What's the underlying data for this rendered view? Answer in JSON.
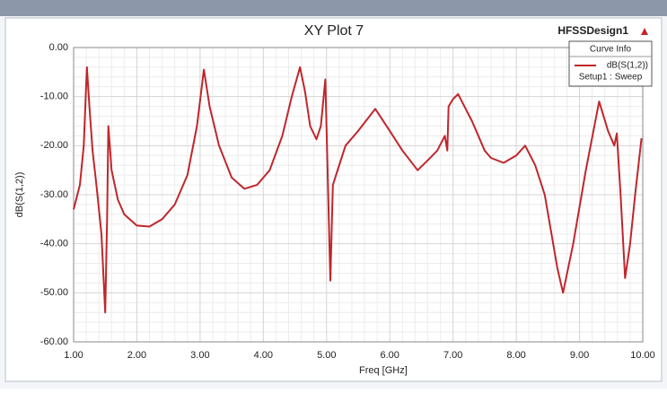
{
  "chart_data": {
    "type": "line",
    "title": "XY Plot 7",
    "design_label": "HFSSDesign1",
    "legend_title": "Curve Info",
    "legend_subtitle": "Setup1 : Sweep",
    "xlabel": "Freq [GHz]",
    "ylabel": "dB(S(1,2))",
    "xlim": [
      1,
      10
    ],
    "ylim": [
      -60,
      0
    ],
    "xticks": [
      {
        "value": 1,
        "label": "1.00"
      },
      {
        "value": 2,
        "label": "2.00"
      },
      {
        "value": 3,
        "label": "3.00"
      },
      {
        "value": 4,
        "label": "4.00"
      },
      {
        "value": 5,
        "label": "5.00"
      },
      {
        "value": 6,
        "label": "6.00"
      },
      {
        "value": 7,
        "label": "7.00"
      },
      {
        "value": 8,
        "label": "8.00"
      },
      {
        "value": 9,
        "label": "9.00"
      },
      {
        "value": 10,
        "label": "10.00"
      }
    ],
    "yticks": [
      {
        "value": 0,
        "label": "0.00"
      },
      {
        "value": -10,
        "label": "-10.00"
      },
      {
        "value": -20,
        "label": "-20.00"
      },
      {
        "value": -30,
        "label": "-30.00"
      },
      {
        "value": -40,
        "label": "-40.00"
      },
      {
        "value": -50,
        "label": "-50.00"
      },
      {
        "value": -60,
        "label": "-60.00"
      }
    ],
    "grid": true,
    "legend": "upper right",
    "x": [
      1.0,
      1.1,
      1.16,
      1.21,
      1.25,
      1.3,
      1.36,
      1.44,
      1.5,
      1.53,
      1.55,
      1.6,
      1.7,
      1.8,
      2.0,
      2.2,
      2.4,
      2.6,
      2.8,
      2.95,
      3.06,
      3.15,
      3.3,
      3.5,
      3.7,
      3.9,
      4.1,
      4.3,
      4.45,
      4.58,
      4.66,
      4.74,
      4.84,
      4.91,
      4.98,
      5.06,
      5.1,
      5.3,
      5.5,
      5.77,
      6.0,
      6.2,
      6.44,
      6.6,
      6.75,
      6.87,
      6.91,
      6.93,
      7.0,
      7.08,
      7.3,
      7.5,
      7.6,
      7.8,
      8.0,
      8.14,
      8.3,
      8.45,
      8.65,
      8.74,
      8.9,
      9.1,
      9.31,
      9.45,
      9.55,
      9.59,
      9.65,
      9.72,
      9.8,
      9.88,
      9.98
    ],
    "series": [
      {
        "name": "dB(S(1,2))",
        "color": "#c0262b",
        "values": [
          -33,
          -28,
          -20,
          -4,
          -12,
          -21,
          -28,
          -38,
          -54,
          -35,
          -16,
          -25,
          -31,
          -34,
          -36.3,
          -36.5,
          -35,
          -32,
          -26,
          -16,
          -4.5,
          -12,
          -20,
          -26.5,
          -28.8,
          -28,
          -25,
          -18,
          -10,
          -4,
          -9,
          -16,
          -18.7,
          -16,
          -6.5,
          -47.5,
          -28,
          -20,
          -17,
          -12.5,
          -17,
          -21,
          -25,
          -23,
          -21,
          -18,
          -21,
          -12,
          -10.5,
          -9.5,
          -15,
          -21,
          -22.5,
          -23.5,
          -22,
          -20,
          -24,
          -30,
          -45,
          -50,
          -40,
          -25,
          -11,
          -17,
          -20,
          -17.5,
          -30,
          -47,
          -40,
          -30,
          -18.5
        ]
      }
    ]
  }
}
